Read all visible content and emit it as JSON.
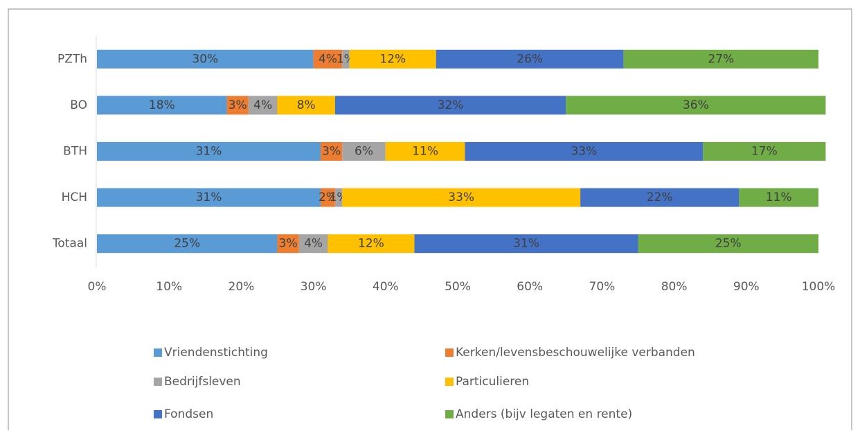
{
  "chart_data": {
    "type": "stacked_barh",
    "categories": [
      "PZTh",
      "BO",
      "BTH",
      "HCH",
      "Totaal"
    ],
    "series": [
      {
        "name": "Vriendenstichting",
        "color": "#5b9bd5",
        "values": [
          30,
          18,
          31,
          31,
          25
        ],
        "value_labels": [
          "30%",
          "18%",
          "31%",
          "31%",
          "25%"
        ]
      },
      {
        "name": "Kerken/levensbeschouwelijke verbanden",
        "color": "#ed7d31",
        "values": [
          4,
          3,
          3,
          2,
          3
        ],
        "value_labels": [
          "4%",
          "3%",
          "3%",
          "2%",
          "3%"
        ]
      },
      {
        "name": "Bedrijfsleven",
        "color": "#a5a5a5",
        "values": [
          1,
          4,
          6,
          1,
          4
        ],
        "value_labels": [
          "1%",
          "4%",
          "6%",
          "1%",
          "4%"
        ]
      },
      {
        "name": "Particulieren",
        "color": "#ffc000",
        "values": [
          12,
          8,
          11,
          33,
          12
        ],
        "value_labels": [
          "12%",
          "8%",
          "11%",
          "33%",
          "12%"
        ]
      },
      {
        "name": "Fondsen",
        "color": "#4472c4",
        "values": [
          26,
          32,
          33,
          22,
          31
        ],
        "value_labels": [
          "26%",
          "32%",
          "33%",
          "22%",
          "31%"
        ]
      },
      {
        "name": "Anders (bijv legaten en rente)",
        "color": "#70ad47",
        "values": [
          27,
          36,
          17,
          11,
          25
        ],
        "value_labels": [
          "27%",
          "36%",
          "17%",
          "11%",
          "25%"
        ]
      }
    ],
    "xlim": [
      0,
      100
    ],
    "xticks": [
      {
        "value": 0,
        "label": "0%"
      },
      {
        "value": 10,
        "label": "10%"
      },
      {
        "value": 20,
        "label": "20%"
      },
      {
        "value": 30,
        "label": "30%"
      },
      {
        "value": 40,
        "label": "40%"
      },
      {
        "value": 50,
        "label": "50%"
      },
      {
        "value": 60,
        "label": "60%"
      },
      {
        "value": 70,
        "label": "70%"
      },
      {
        "value": 80,
        "label": "80%"
      },
      {
        "value": 90,
        "label": "90%"
      },
      {
        "value": 100,
        "label": "100%"
      }
    ],
    "legend": "bottom"
  }
}
